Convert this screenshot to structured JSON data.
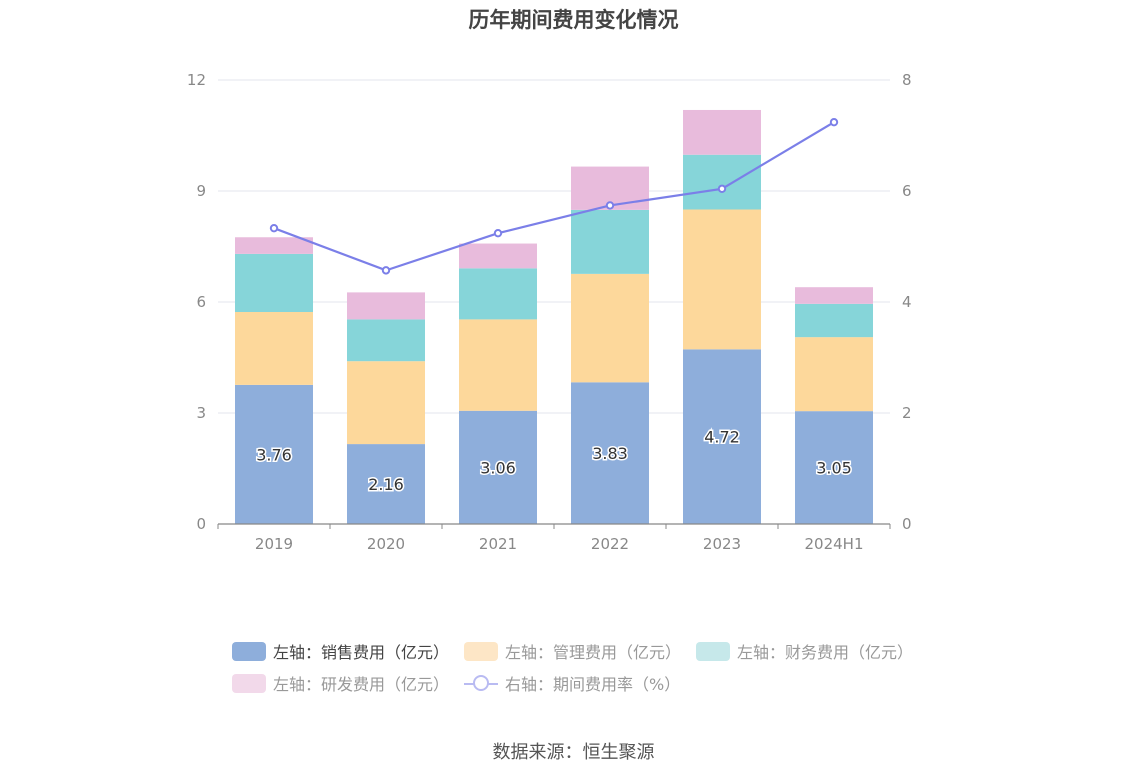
{
  "chart_data": {
    "type": "bar",
    "title": "历年期间费用变化情况",
    "categories": [
      "2019",
      "2020",
      "2021",
      "2022",
      "2023",
      "2024H1"
    ],
    "left_axis": {
      "ylim": [
        0,
        12
      ],
      "ticks": [
        "0",
        "3",
        "6",
        "9",
        "12"
      ]
    },
    "right_axis": {
      "ylim": [
        0,
        8
      ],
      "ticks": [
        "0",
        "2",
        "4",
        "6",
        "8"
      ]
    },
    "series": [
      {
        "name": "左轴：销售费用（亿元）",
        "type": "bar",
        "axis": "left",
        "color": "#8eaedb",
        "values": [
          3.76,
          2.16,
          3.06,
          3.83,
          4.72,
          3.05
        ],
        "labels": [
          "3.76",
          "2.16",
          "3.06",
          "3.83",
          "4.72",
          "3.05"
        ]
      },
      {
        "name": "左轴：管理费用（亿元）",
        "type": "bar",
        "axis": "left",
        "color": "#fdd89b",
        "values": [
          1.97,
          2.24,
          2.47,
          2.93,
          3.78,
          2.0
        ]
      },
      {
        "name": "左轴：财务费用（亿元）",
        "type": "bar",
        "axis": "left",
        "color": "#86d5d9",
        "values": [
          1.57,
          1.13,
          1.38,
          1.73,
          1.48,
          0.9
        ]
      },
      {
        "name": "左轴：研发费用（亿元）",
        "type": "bar",
        "axis": "left",
        "color": "#e8bbdc",
        "values": [
          0.45,
          0.73,
          0.67,
          1.17,
          1.21,
          0.45
        ]
      },
      {
        "name": "右轴：期间费用率（%）",
        "type": "line",
        "axis": "right",
        "color": "#7b7fe8",
        "values": [
          5.33,
          4.57,
          5.24,
          5.74,
          6.04,
          7.24
        ]
      }
    ],
    "grid": true,
    "legend_position": "bottom"
  },
  "source": "数据来源：恒生聚源",
  "legend_swatch_colors": [
    "#8eaedb",
    "#fde6c6",
    "#c6e8ea",
    "#f2d9ea",
    "#7b7fe8"
  ]
}
